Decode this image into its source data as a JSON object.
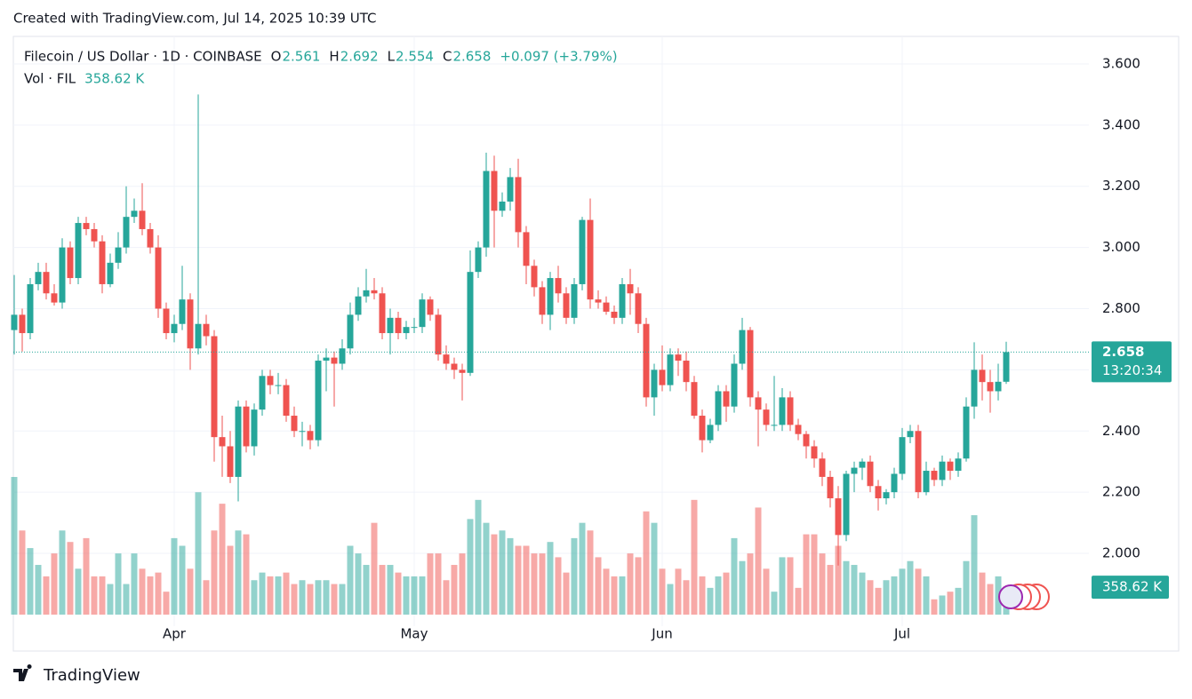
{
  "header": "Created with TradingView.com, Jul 14, 2025 10:39 UTC",
  "footer": "TradingView",
  "chart_data": {
    "type": "candlestick",
    "title": "Filecoin / US Dollar · 1D · COINBASE",
    "ohlc_keys": [
      "O",
      "H",
      "L",
      "C"
    ],
    "change_label": "+0.097 (+3.79%)",
    "volume_title": "Vol · FIL",
    "volume_label": "358.62 K",
    "countdown": "13:20:34",
    "up_color": "#26a69a",
    "down_color": "#ef5350",
    "grid": true,
    "ylim": [
      1.762,
      3.687
    ],
    "yticks": [
      {
        "value": 2.0,
        "label": "2.000"
      },
      {
        "value": 2.2,
        "label": "2.200"
      },
      {
        "value": 2.4,
        "label": "2.400"
      },
      {
        "value": 2.6,
        "label": "2.600"
      },
      {
        "value": 2.8,
        "label": "2.800"
      },
      {
        "value": 3.0,
        "label": "3.000"
      },
      {
        "value": 3.2,
        "label": "3.200"
      },
      {
        "value": 3.4,
        "label": "3.400"
      },
      {
        "value": 3.6,
        "label": "3.600"
      }
    ],
    "categories": [
      null,
      null,
      null,
      null,
      null,
      null,
      null,
      null,
      null,
      null,
      null,
      null,
      null,
      null,
      null,
      null,
      null,
      null,
      null,
      null,
      "Apr",
      null,
      null,
      null,
      null,
      null,
      null,
      null,
      null,
      null,
      null,
      null,
      null,
      null,
      null,
      null,
      null,
      null,
      null,
      null,
      null,
      null,
      null,
      null,
      null,
      null,
      null,
      null,
      null,
      null,
      "May",
      null,
      null,
      null,
      null,
      null,
      null,
      null,
      null,
      null,
      null,
      null,
      null,
      null,
      null,
      null,
      null,
      null,
      null,
      null,
      null,
      null,
      null,
      null,
      null,
      null,
      null,
      null,
      null,
      null,
      null,
      "Jun",
      null,
      null,
      null,
      null,
      null,
      null,
      null,
      null,
      null,
      null,
      null,
      null,
      null,
      null,
      null,
      null,
      null,
      null,
      null,
      null,
      null,
      null,
      null,
      null,
      null,
      null,
      null,
      null,
      null,
      "Jul",
      null,
      null,
      null,
      null,
      null,
      null,
      null,
      null,
      null,
      null,
      null,
      null,
      null
    ],
    "open": [
      2.73,
      2.78,
      2.72,
      2.88,
      2.92,
      2.85,
      2.82,
      3.0,
      2.9,
      3.08,
      3.06,
      3.02,
      2.88,
      2.95,
      3.0,
      3.1,
      3.12,
      3.06,
      3.0,
      2.8,
      2.72,
      2.75,
      2.83,
      2.67,
      2.75,
      2.71,
      2.38,
      2.35,
      2.25,
      2.48,
      2.35,
      2.47,
      2.58,
      2.55,
      2.55,
      2.45,
      2.4,
      2.4,
      2.37,
      2.63,
      2.64,
      2.62,
      2.67,
      2.78,
      2.84,
      2.86,
      2.85,
      2.72,
      2.77,
      2.72,
      2.74,
      2.74,
      2.83,
      2.78,
      2.65,
      2.62,
      2.6,
      2.59,
      2.92,
      3.0,
      3.25,
      3.12,
      3.15,
      3.23,
      3.05,
      2.94,
      2.87,
      2.78,
      2.9,
      2.85,
      2.77,
      2.88,
      3.09,
      2.83,
      2.82,
      2.79,
      2.77,
      2.88,
      2.85,
      2.75,
      2.51,
      2.6,
      2.55,
      2.65,
      2.63,
      2.56,
      2.45,
      2.37,
      2.42,
      2.53,
      2.48,
      2.62,
      2.73,
      2.51,
      2.47,
      2.42,
      2.42,
      2.51,
      2.42,
      2.39,
      2.35,
      2.31,
      2.25,
      2.18,
      2.06,
      2.26,
      2.28,
      2.3,
      2.22,
      2.18,
      2.2,
      2.26,
      2.38,
      2.4,
      2.2,
      2.27,
      2.24,
      2.3,
      2.27,
      2.31,
      2.48,
      2.6,
      2.56,
      2.53,
      2.561
    ],
    "high": [
      2.91,
      2.8,
      2.9,
      2.95,
      2.95,
      2.88,
      3.03,
      3.02,
      3.1,
      3.1,
      3.08,
      3.04,
      2.98,
      3.05,
      3.2,
      3.16,
      3.21,
      3.08,
      3.04,
      2.82,
      2.78,
      2.94,
      2.85,
      3.5,
      2.78,
      2.73,
      2.45,
      2.4,
      2.5,
      2.5,
      2.49,
      2.6,
      2.6,
      2.59,
      2.57,
      2.48,
      2.43,
      2.42,
      2.65,
      2.67,
      2.66,
      2.7,
      2.82,
      2.87,
      2.93,
      2.9,
      2.87,
      2.8,
      2.79,
      2.76,
      2.77,
      2.85,
      2.84,
      2.8,
      2.68,
      2.64,
      2.62,
      2.99,
      3.02,
      3.31,
      3.3,
      3.18,
      3.26,
      3.29,
      3.07,
      2.96,
      2.89,
      2.92,
      2.94,
      2.87,
      2.9,
      3.1,
      3.16,
      2.86,
      2.84,
      2.81,
      2.9,
      2.93,
      2.87,
      2.77,
      2.62,
      2.68,
      2.67,
      2.67,
      2.66,
      2.58,
      2.47,
      2.44,
      2.55,
      2.55,
      2.65,
      2.77,
      2.74,
      2.53,
      2.49,
      2.58,
      2.54,
      2.53,
      2.44,
      2.4,
      2.37,
      2.33,
      2.27,
      2.22,
      2.27,
      2.3,
      2.31,
      2.32,
      2.24,
      2.21,
      2.28,
      2.41,
      2.42,
      2.42,
      2.3,
      2.28,
      2.32,
      2.31,
      2.33,
      2.51,
      2.69,
      2.65,
      2.6,
      2.62,
      2.692
    ],
    "low": [
      2.65,
      2.66,
      2.7,
      2.86,
      2.83,
      2.81,
      2.8,
      2.88,
      2.88,
      3.04,
      3.0,
      2.85,
      2.87,
      2.93,
      2.98,
      3.08,
      3.04,
      2.98,
      2.77,
      2.7,
      2.69,
      2.73,
      2.6,
      2.65,
      2.68,
      2.3,
      2.25,
      2.23,
      2.17,
      2.33,
      2.32,
      2.45,
      2.52,
      2.52,
      2.43,
      2.38,
      2.35,
      2.34,
      2.35,
      2.53,
      2.48,
      2.6,
      2.65,
      2.76,
      2.82,
      2.83,
      2.7,
      2.65,
      2.7,
      2.7,
      2.72,
      2.72,
      2.76,
      2.63,
      2.6,
      2.57,
      2.5,
      2.58,
      2.9,
      2.97,
      3.0,
      3.1,
      3.12,
      3.0,
      2.88,
      2.84,
      2.75,
      2.73,
      2.82,
      2.75,
      2.75,
      2.86,
      2.8,
      2.8,
      2.78,
      2.75,
      2.75,
      2.78,
      2.72,
      2.48,
      2.45,
      2.53,
      2.53,
      2.58,
      2.53,
      2.44,
      2.33,
      2.36,
      2.4,
      2.43,
      2.46,
      2.6,
      2.48,
      2.35,
      2.4,
      2.4,
      2.4,
      2.4,
      2.37,
      2.31,
      2.28,
      2.22,
      2.15,
      1.96,
      2.04,
      2.2,
      2.24,
      2.2,
      2.14,
      2.16,
      2.18,
      2.24,
      2.36,
      2.18,
      2.19,
      2.22,
      2.22,
      2.24,
      2.25,
      2.3,
      2.44,
      2.5,
      2.46,
      2.5,
      2.554
    ],
    "close": [
      2.78,
      2.72,
      2.88,
      2.92,
      2.85,
      2.82,
      3.0,
      2.9,
      3.08,
      3.06,
      3.02,
      2.88,
      2.95,
      3.0,
      3.1,
      3.12,
      3.06,
      3.0,
      2.8,
      2.72,
      2.75,
      2.83,
      2.67,
      2.75,
      2.71,
      2.38,
      2.35,
      2.25,
      2.48,
      2.35,
      2.47,
      2.58,
      2.55,
      2.55,
      2.45,
      2.4,
      2.4,
      2.37,
      2.63,
      2.64,
      2.62,
      2.67,
      2.78,
      2.84,
      2.86,
      2.85,
      2.72,
      2.77,
      2.72,
      2.74,
      2.74,
      2.83,
      2.78,
      2.65,
      2.62,
      2.6,
      2.59,
      2.92,
      3.0,
      3.25,
      3.12,
      3.15,
      3.23,
      3.05,
      2.94,
      2.87,
      2.78,
      2.9,
      2.85,
      2.77,
      2.88,
      3.09,
      2.83,
      2.82,
      2.79,
      2.77,
      2.88,
      2.85,
      2.75,
      2.51,
      2.6,
      2.55,
      2.65,
      2.63,
      2.56,
      2.45,
      2.37,
      2.42,
      2.53,
      2.48,
      2.62,
      2.73,
      2.51,
      2.47,
      2.42,
      2.42,
      2.51,
      2.42,
      2.39,
      2.35,
      2.31,
      2.25,
      2.18,
      2.06,
      2.26,
      2.28,
      2.3,
      2.22,
      2.18,
      2.2,
      2.26,
      2.38,
      2.4,
      2.2,
      2.27,
      2.24,
      2.3,
      2.27,
      2.31,
      2.48,
      2.6,
      2.56,
      2.53,
      2.561,
      2.658
    ],
    "volume": [
      1800,
      1100,
      870,
      650,
      500,
      800,
      1100,
      950,
      600,
      1000,
      500,
      500,
      400,
      800,
      400,
      800,
      600,
      500,
      550,
      300,
      1000,
      900,
      600,
      1600,
      450,
      1100,
      1450,
      900,
      1100,
      1050,
      450,
      550,
      500,
      500,
      550,
      400,
      450,
      400,
      450,
      450,
      400,
      400,
      900,
      800,
      650,
      1200,
      650,
      650,
      550,
      500,
      500,
      500,
      800,
      800,
      450,
      650,
      800,
      1250,
      1500,
      1200,
      1050,
      1100,
      1000,
      900,
      900,
      800,
      800,
      950,
      750,
      550,
      1000,
      1200,
      1100,
      750,
      600,
      500,
      500,
      800,
      750,
      1350,
      1200,
      600,
      400,
      600,
      450,
      1500,
      500,
      350,
      500,
      550,
      1000,
      700,
      800,
      1400,
      600,
      300,
      750,
      750,
      350,
      1050,
      1050,
      800,
      650,
      900,
      700,
      650,
      550,
      450,
      350,
      450,
      500,
      600,
      700,
      600,
      500,
      200,
      250,
      300,
      350,
      700,
      1300,
      550,
      400,
      500,
      358.62
    ]
  }
}
